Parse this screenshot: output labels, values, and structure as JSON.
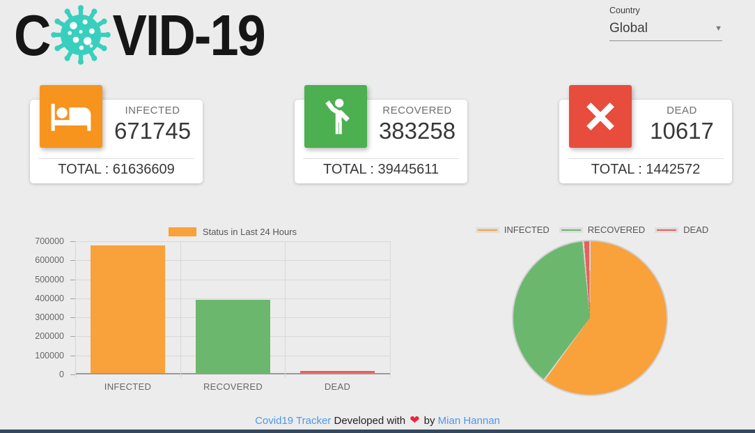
{
  "header": {
    "logo": {
      "left": "C",
      "right": "VID-19"
    },
    "country": {
      "label": "Country",
      "value": "Global"
    }
  },
  "cards": [
    {
      "label": "INFECTED",
      "value": "671745",
      "total": "TOTAL : 61636609",
      "color": "#F7941E",
      "icon": "bed-icon"
    },
    {
      "label": "RECOVERED",
      "value": "383258",
      "total": "TOTAL : 39445611",
      "color": "#4CAF50",
      "icon": "person-waving-icon"
    },
    {
      "label": "DEAD",
      "value": "10617",
      "total": "TOTAL : 1442572",
      "color": "#E74C3C",
      "icon": "x-mark-icon"
    }
  ],
  "chart_data": [
    {
      "type": "bar",
      "title": "Status in Last 24 Hours",
      "categories": [
        "INFECTED",
        "RECOVERED",
        "DEAD"
      ],
      "values": [
        671745,
        383258,
        10617
      ],
      "colors": [
        "#F9A13A",
        "#6CB76E",
        "#E7605C"
      ],
      "xlabel": "",
      "ylabel": "",
      "ylim": [
        0,
        700000
      ],
      "ytick_step": 100000,
      "grid": true,
      "legend_position": "top"
    },
    {
      "type": "pie",
      "labels": [
        "INFECTED",
        "RECOVERED",
        "DEAD"
      ],
      "values": [
        61636609,
        39445611,
        1442572
      ],
      "colors": [
        "#F9A13A",
        "#6CB76E",
        "#E7605C"
      ],
      "start_angle_deg": 0,
      "direction": "clockwise",
      "legend_position": "top"
    }
  ],
  "footer": {
    "link1": "Covid19 Tracker",
    "mid1": "Developed with",
    "heart": "❤",
    "mid2": "by",
    "link2": "Mian Hannan"
  },
  "colors": {
    "logo_virus": "#38CFBE",
    "link": "#4D97EC",
    "footer_bar": "#34495E",
    "background": "#ECECEC"
  }
}
